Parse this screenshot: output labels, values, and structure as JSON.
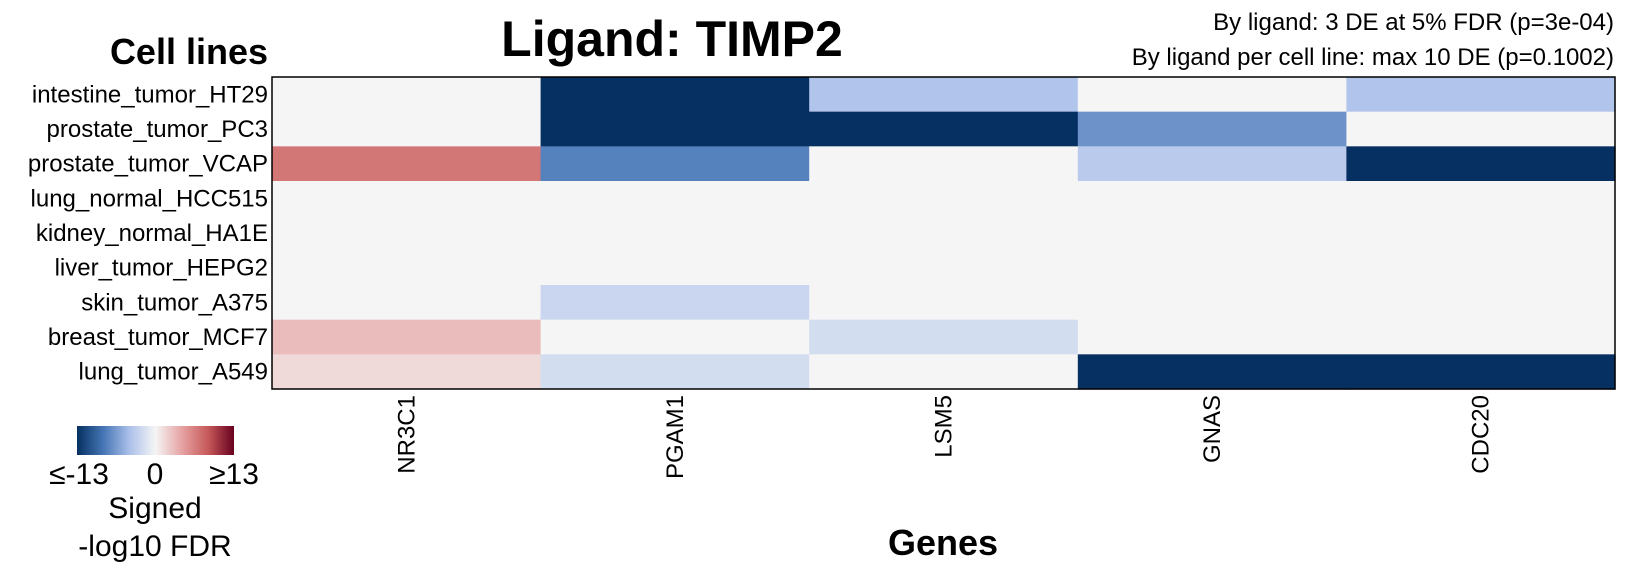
{
  "title": "Ligand: TIMP2",
  "stats": {
    "line1": "By ligand: 3 DE at 5% FDR (p=3e-04)",
    "line2": "By ligand per cell line: max 10 DE (p=0.1002)"
  },
  "chart_data": {
    "type": "heatmap",
    "title": "Ligand: TIMP2",
    "xlabel": "Genes",
    "ylabel": "Cell lines",
    "x": [
      "NR3C1",
      "PGAM1",
      "LSM5",
      "GNAS",
      "CDC20"
    ],
    "y": [
      "intestine_tumor_HT29",
      "prostate_tumor_PC3",
      "prostate_tumor_VCAP",
      "lung_normal_HCC515",
      "kidney_normal_HA1E",
      "liver_tumor_HEPG2",
      "skin_tumor_A375",
      "breast_tumor_MCF7",
      "lung_tumor_A549"
    ],
    "values": [
      [
        0,
        -13,
        -4,
        0,
        -4
      ],
      [
        0,
        -13,
        -13,
        -7,
        0
      ],
      [
        7,
        -8,
        0,
        -3.5,
        -13
      ],
      [
        0,
        0,
        0,
        0,
        0
      ],
      [
        0,
        0,
        0,
        0,
        0
      ],
      [
        0,
        0,
        0,
        0,
        0
      ],
      [
        0,
        -2.5,
        0,
        0,
        0
      ],
      [
        3,
        0,
        -2,
        0,
        0
      ],
      [
        1.5,
        -2,
        0,
        -13,
        -13
      ]
    ],
    "zlim": [
      -13,
      13
    ],
    "colorscale": [
      "#053061",
      "#4575b4",
      "#abc0ea",
      "#f5f5f5",
      "#e6a3a3",
      "#c75a5a",
      "#67001f"
    ],
    "legend": {
      "min_label": "≤-13",
      "mid_label": "0",
      "max_label": "≥13",
      "title_line1": "Signed",
      "title_line2": "-log10 FDR",
      "position": "bottom-left"
    }
  }
}
